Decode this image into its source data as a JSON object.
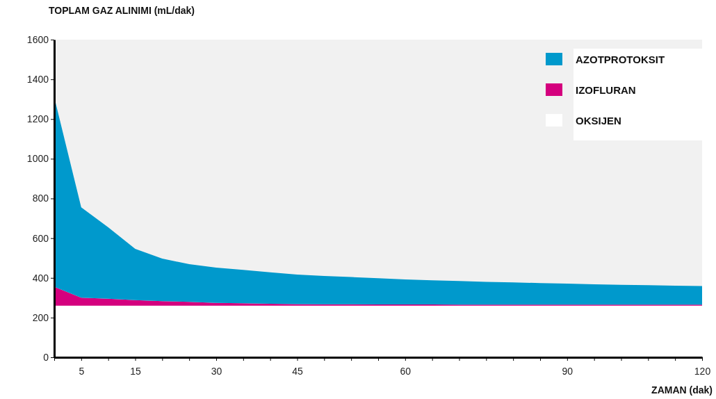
{
  "chart_data": {
    "type": "area",
    "stacked": true,
    "ylabel": "TOPLAM GAZ ALINIMI (mL/dak)",
    "xlabel": "ZAMAN (dak)",
    "categories": [
      null,
      "5",
      null,
      "15",
      null,
      null,
      "30",
      null,
      null,
      "45",
      null,
      null,
      null,
      "60",
      null,
      null,
      null,
      null,
      null,
      "90",
      null,
      null,
      null,
      null,
      "120"
    ],
    "ylim": [
      0,
      1600
    ],
    "yticks": [
      0,
      200,
      400,
      600,
      800,
      1000,
      1200,
      1400,
      1600
    ],
    "grid": false,
    "legend": "top right",
    "series": [
      {
        "name": "OKSIJEN",
        "color": "#ffffff",
        "values": [
          260,
          260,
          260,
          260,
          260,
          260,
          260,
          260,
          260,
          260,
          260,
          260,
          260,
          260,
          260,
          260,
          260,
          260,
          260,
          260,
          260,
          260,
          260,
          260,
          260
        ]
      },
      {
        "name": "IZOFLURAN",
        "color": "#d4007e",
        "values": [
          95,
          40,
          35,
          28,
          23,
          19,
          14,
          12,
          10,
          8,
          7,
          7,
          6,
          6,
          6,
          5,
          5,
          5,
          5,
          5,
          5,
          5,
          5,
          5,
          5
        ]
      },
      {
        "name": "AZOTPROTOKSIT",
        "color": "#0099cc",
        "values": [
          955,
          455,
          360,
          258,
          214,
          190,
          178,
          168,
          158,
          149,
          143,
          137,
          132,
          126,
          122,
          119,
          115,
          112,
          109,
          106,
          103,
          100,
          98,
          96,
          94
        ]
      }
    ]
  }
}
